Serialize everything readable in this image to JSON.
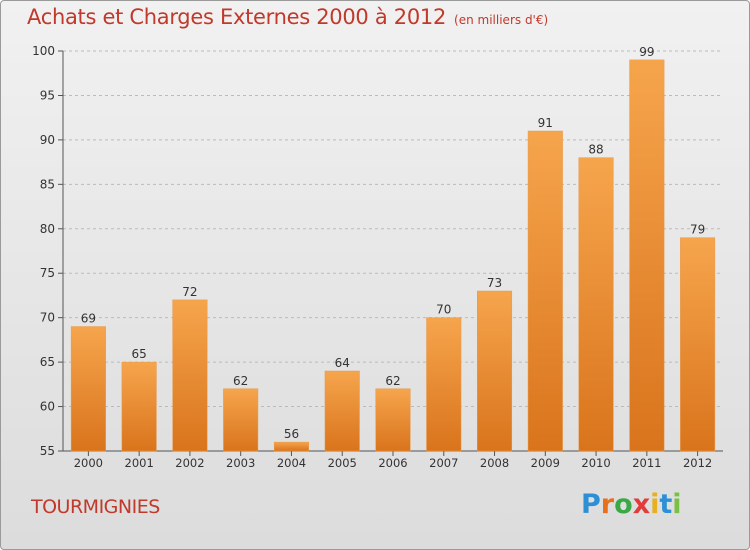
{
  "header": {
    "title": "Achats et Charges Externes 2000 à 2012",
    "subtitle": "(en milliers d'€)"
  },
  "footer": {
    "commune": "TOURMIGNIES",
    "logo_letters": [
      "P",
      "r",
      "o",
      "x",
      "i",
      "t",
      "i"
    ],
    "logo_colors": [
      "#2d8fd5",
      "#e8701a",
      "#3aa843",
      "#e23b3b",
      "#e8b020",
      "#2d8fd5",
      "#7ac143"
    ]
  },
  "chart_data": {
    "type": "bar",
    "title": "Achats et Charges Externes 2000 à 2012",
    "subtitle": "(en milliers d'€)",
    "categories": [
      "2000",
      "2001",
      "2002",
      "2003",
      "2004",
      "2005",
      "2006",
      "2007",
      "2008",
      "2009",
      "2010",
      "2011",
      "2012"
    ],
    "values": [
      69,
      65,
      72,
      62,
      56,
      64,
      62,
      70,
      73,
      91,
      88,
      99,
      79
    ],
    "ylim": [
      55,
      100
    ],
    "yticks": [
      55,
      60,
      65,
      70,
      75,
      80,
      85,
      90,
      95,
      100
    ],
    "grid": true,
    "colors": {
      "bar_top": "#f6a54d",
      "bar_bottom": "#d9741c",
      "text": "#c0392b",
      "grid": "#bbbbbb"
    }
  }
}
